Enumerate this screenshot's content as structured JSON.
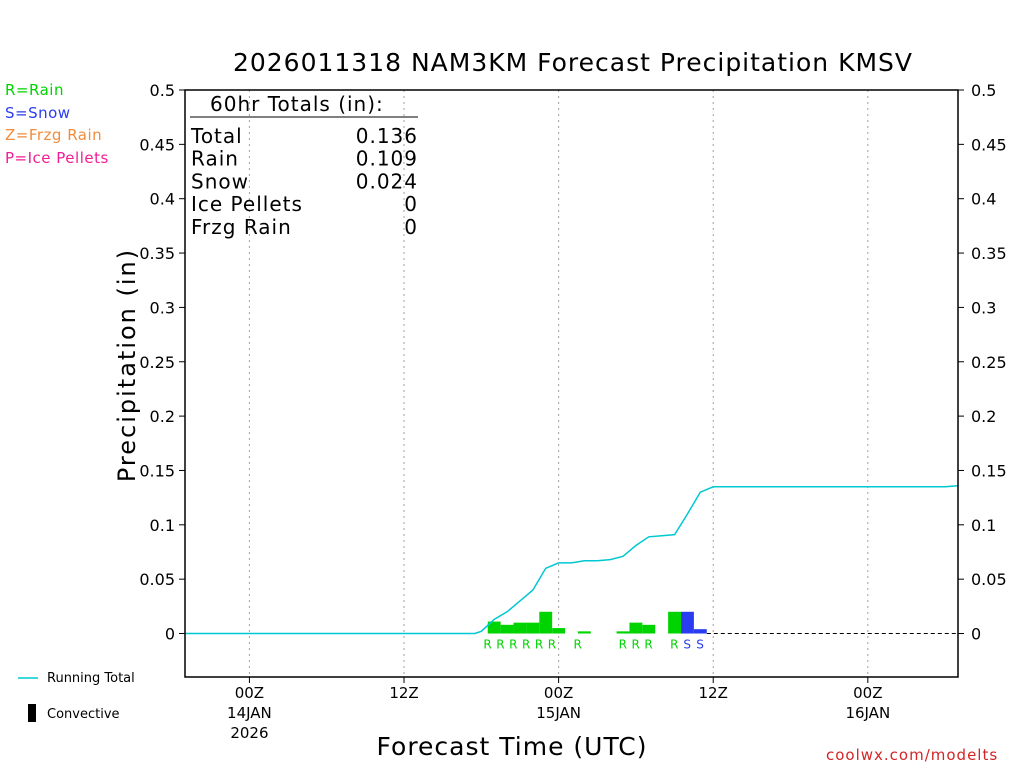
{
  "chart_data": {
    "type": "bar",
    "title": "2026011318 NAM3KM Forecast Precipitation KMSV",
    "xlabel": "Forecast Time (UTC)",
    "ylabel": "Precipitation (in)",
    "ylim": [
      -0.04,
      0.5
    ],
    "yticks": [
      "0.5",
      "0.45",
      "0.4",
      "0.35",
      "0.3",
      "0.25",
      "0.2",
      "0.15",
      "0.1",
      "0.05",
      "0"
    ],
    "ytick_values": [
      0.5,
      0.45,
      0.4,
      0.35,
      0.3,
      0.25,
      0.2,
      0.15,
      0.1,
      0.05,
      0
    ],
    "xlim_hours": [
      -5,
      55
    ],
    "xticks": [
      {
        "hour": 0,
        "label1": "00Z",
        "label2": "14JAN",
        "label3": "2026"
      },
      {
        "hour": 12,
        "label1": "12Z",
        "label2": "",
        "label3": ""
      },
      {
        "hour": 24,
        "label1": "00Z",
        "label2": "15JAN",
        "label3": ""
      },
      {
        "hour": 36,
        "label1": "12Z",
        "label2": "",
        "label3": ""
      },
      {
        "hour": 48,
        "label1": "00Z",
        "label2": "16JAN",
        "label3": ""
      }
    ],
    "bars": [
      {
        "hour": 19,
        "value": 0.011,
        "type": "R"
      },
      {
        "hour": 20,
        "value": 0.008,
        "type": "R"
      },
      {
        "hour": 21,
        "value": 0.01,
        "type": "R"
      },
      {
        "hour": 22,
        "value": 0.01,
        "type": "R"
      },
      {
        "hour": 23,
        "value": 0.02,
        "type": "R"
      },
      {
        "hour": 24,
        "value": 0.005,
        "type": "R"
      },
      {
        "hour": 26,
        "value": 0.002,
        "type": "R"
      },
      {
        "hour": 29,
        "value": 0.002,
        "type": "R"
      },
      {
        "hour": 30,
        "value": 0.01,
        "type": "R"
      },
      {
        "hour": 31,
        "value": 0.008,
        "type": "R"
      },
      {
        "hour": 33,
        "value": 0.02,
        "type": "R"
      },
      {
        "hour": 34,
        "value": 0.02,
        "type": "S"
      },
      {
        "hour": 35,
        "value": 0.004,
        "type": "S"
      }
    ],
    "type_markers": [
      {
        "hour": 18.5,
        "label": "R"
      },
      {
        "hour": 19.5,
        "label": "R"
      },
      {
        "hour": 20.5,
        "label": "R"
      },
      {
        "hour": 21.5,
        "label": "R"
      },
      {
        "hour": 22.5,
        "label": "R"
      },
      {
        "hour": 23.5,
        "label": "R"
      },
      {
        "hour": 25.5,
        "label": "R"
      },
      {
        "hour": 29.0,
        "label": "R"
      },
      {
        "hour": 30.0,
        "label": "R"
      },
      {
        "hour": 31.0,
        "label": "R"
      },
      {
        "hour": 33.0,
        "label": "R"
      },
      {
        "hour": 34.0,
        "label": "S"
      },
      {
        "hour": 35.0,
        "label": "S"
      }
    ],
    "series": [
      {
        "name": "Running Total",
        "color": "#00c8d2",
        "x": [
          -5,
          17.5,
          18,
          19,
          20,
          21,
          22,
          23,
          24,
          25,
          26,
          27,
          28,
          29,
          30,
          31,
          32,
          33,
          34,
          35,
          36,
          40,
          44,
          48,
          52,
          54,
          55
        ],
        "values": [
          0,
          0,
          0.002,
          0.013,
          0.02,
          0.03,
          0.04,
          0.06,
          0.065,
          0.065,
          0.067,
          0.067,
          0.068,
          0.071,
          0.081,
          0.089,
          0.09,
          0.091,
          0.11,
          0.13,
          0.135,
          0.135,
          0.135,
          0.135,
          0.135,
          0.135,
          0.136
        ]
      }
    ],
    "totals": {
      "heading": "60hr Totals (in):",
      "rows": [
        {
          "label": "Total",
          "value": "0.136"
        },
        {
          "label": "Rain",
          "value": "0.109"
        },
        {
          "label": "Snow",
          "value": "0.024"
        },
        {
          "label": "Ice Pellets",
          "value": "0"
        },
        {
          "label": "Frzg Rain",
          "value": "0"
        }
      ]
    },
    "colors": {
      "rain": "#00d400",
      "snow": "#2a3cf0",
      "frzg_rain": "#f08c3c",
      "ice_pellets": "#f01e96",
      "running_total": "#00c8d2",
      "grid": "#a0a0a0"
    }
  },
  "type_legend": [
    {
      "text": "R=Rain",
      "color": "#00d400"
    },
    {
      "text": "S=Snow",
      "color": "#2a3cf0"
    },
    {
      "text": "Z=Frzg Rain",
      "color": "#f08c3c"
    },
    {
      "text": "P=Ice Pellets",
      "color": "#f01e96"
    }
  ],
  "bottom_legend": {
    "running_total": "Running Total",
    "convective": "Convective"
  },
  "credit": "coolwx.com/modelts"
}
